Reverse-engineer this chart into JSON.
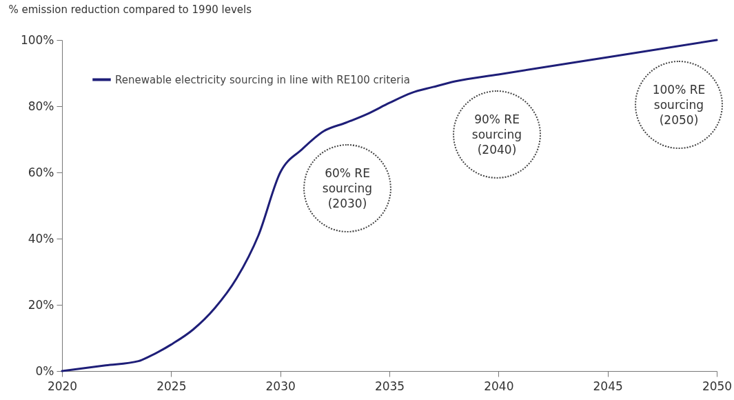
{
  "chart_data": {
    "type": "line",
    "ylabel": "% emission reduction compared to 1990 levels",
    "x": [
      2020,
      2022,
      2023.5,
      2024,
      2025,
      2026,
      2027,
      2028,
      2029,
      2030,
      2031,
      2032,
      2033,
      2034,
      2035,
      2036,
      2037,
      2038,
      2040,
      2045,
      2050
    ],
    "series": [
      {
        "name": "Renewable electricity sourcing in line with RE100 criteria",
        "color": "#1e1e78",
        "values": [
          0,
          1.7,
          3,
          4.4,
          8,
          12.5,
          19,
          28,
          41,
          60,
          67,
          72.5,
          75,
          77.7,
          81,
          84,
          85.8,
          87.5,
          89.6,
          94.8,
          100
        ]
      }
    ],
    "xlim": [
      2020,
      2050
    ],
    "xticks": [
      2020,
      2025,
      2030,
      2035,
      2040,
      2045,
      2050
    ],
    "ylim": [
      0,
      100
    ],
    "yticks": [
      {
        "value": 0,
        "label": "0%"
      },
      {
        "value": 20,
        "label": "20%"
      },
      {
        "value": 40,
        "label": "40%"
      },
      {
        "value": 60,
        "label": "60%"
      },
      {
        "value": 80,
        "label": "80%"
      },
      {
        "value": 100,
        "label": "100%"
      }
    ],
    "legend": "top left",
    "marker": "none",
    "line_style": "solid",
    "annotations": [
      "60% RE sourcing (2030)",
      "90% RE sourcing (2040)",
      "100% RE sourcing (2050)"
    ]
  }
}
